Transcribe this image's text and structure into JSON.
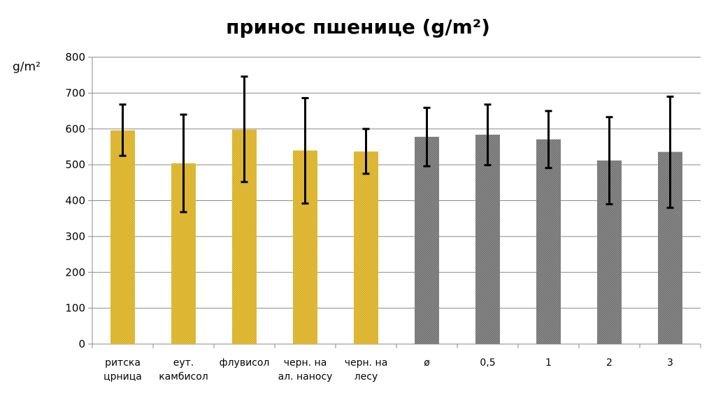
{
  "chart_data": {
    "type": "bar",
    "title": "принос пшенице (g/m²)",
    "ylabel": "g/m²",
    "xlabel": "",
    "ylim": [
      0,
      800
    ],
    "yticks": [
      0,
      100,
      200,
      300,
      400,
      500,
      600,
      700,
      800
    ],
    "grid": true,
    "legend": "none",
    "categories": [
      [
        "ритска",
        "црница"
      ],
      [
        "еут.",
        "камбисол"
      ],
      [
        "флувисол"
      ],
      [
        "черн. на",
        "ал. наносу"
      ],
      [
        "черн. на",
        "лесу"
      ],
      [
        "ø"
      ],
      [
        "0,5"
      ],
      [
        "1"
      ],
      [
        "2"
      ],
      [
        "3"
      ]
    ],
    "values": [
      596,
      504,
      598,
      540,
      537,
      578,
      584,
      571,
      512,
      536
    ],
    "error_low": [
      525,
      368,
      452,
      392,
      475,
      496,
      499,
      491,
      390,
      380
    ],
    "error_high": [
      668,
      640,
      746,
      686,
      600,
      659,
      668,
      650,
      633,
      690
    ],
    "bar_colors": [
      "#E4BE3A",
      "#E4BE3A",
      "#E4BE3A",
      "#E4BE3A",
      "#E4BE3A",
      "#8C8C8C",
      "#8C8C8C",
      "#8C8C8C",
      "#8C8C8C",
      "#8C8C8C"
    ]
  }
}
